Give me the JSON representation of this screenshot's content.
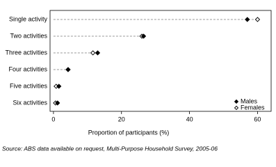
{
  "chart_data": {
    "type": "dot",
    "categories": [
      "Single activity",
      "Two activities",
      "Three activities",
      "Four activities",
      "Five activities",
      "Six activities"
    ],
    "series": [
      {
        "name": "Males",
        "color": "#000000",
        "marker": "filled-diamond",
        "values": [
          57,
          26.5,
          13,
          4.3,
          1.6,
          1.2
        ]
      },
      {
        "name": "Females",
        "color": "#000000",
        "marker": "open-diamond",
        "values": [
          60,
          26,
          11.6,
          4.3,
          0.8,
          0.6
        ]
      }
    ],
    "xlabel": "Proportion of participants (%)",
    "xlim": [
      -1,
      64
    ],
    "xticks": [
      0,
      20,
      40,
      60
    ],
    "legend": "bottom-right",
    "source": "Source: ABS data available on request, Multi-Purpose Household Survey, 2005-06"
  }
}
